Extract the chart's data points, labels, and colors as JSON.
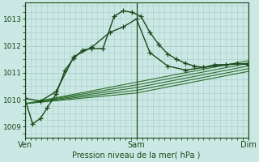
{
  "xlabel": "Pression niveau de la mer( hPa )",
  "xtick_labels": [
    "Ven",
    "Sam",
    "Dim"
  ],
  "xtick_positions": [
    0,
    0.5,
    1.0
  ],
  "ylim": [
    1008.6,
    1013.6
  ],
  "yticks": [
    1009,
    1010,
    1011,
    1012,
    1013
  ],
  "background_color": "#cce8e4",
  "grid_color": "#a8cdc9",
  "dark_color": "#1a4a1a",
  "line_color": "#2d6e2d",
  "figsize": [
    3.2,
    2.0
  ],
  "dpi": 100,
  "series": [
    {
      "x": [
        0.0,
        0.035,
        0.07,
        0.1,
        0.14,
        0.18,
        0.22,
        0.26,
        0.3,
        0.35,
        0.4,
        0.44,
        0.48,
        0.52,
        0.56,
        0.6,
        0.64,
        0.68,
        0.72,
        0.76,
        0.8,
        0.85,
        0.9,
        0.95,
        1.0
      ],
      "y": [
        1010.05,
        1009.1,
        1009.3,
        1009.7,
        1010.2,
        1011.1,
        1011.55,
        1011.85,
        1011.9,
        1011.9,
        1013.1,
        1013.3,
        1013.25,
        1013.1,
        1012.5,
        1012.05,
        1011.7,
        1011.5,
        1011.35,
        1011.25,
        1011.2,
        1011.3,
        1011.3,
        1011.35,
        1011.3
      ],
      "marker": true
    },
    {
      "x": [
        0.0,
        0.07,
        0.14,
        0.22,
        0.3,
        0.38,
        0.44,
        0.5,
        0.56,
        0.64,
        0.72,
        0.8,
        0.9,
        1.0
      ],
      "y": [
        1010.05,
        1009.95,
        1010.3,
        1011.6,
        1011.95,
        1012.5,
        1012.7,
        1013.0,
        1011.75,
        1011.25,
        1011.1,
        1011.2,
        1011.3,
        1011.35
      ],
      "marker": true
    },
    {
      "x": [
        0.0,
        0.5,
        1.0
      ],
      "y": [
        1009.85,
        1010.35,
        1011.15
      ],
      "marker": false,
      "style": "-"
    },
    {
      "x": [
        0.0,
        0.5,
        1.0
      ],
      "y": [
        1009.85,
        1010.45,
        1011.25
      ],
      "marker": false,
      "style": "-"
    },
    {
      "x": [
        0.0,
        0.5,
        1.0
      ],
      "y": [
        1009.85,
        1010.55,
        1011.35
      ],
      "marker": false,
      "style": "-"
    },
    {
      "x": [
        0.0,
        0.5,
        1.0
      ],
      "y": [
        1009.85,
        1010.65,
        1011.45
      ],
      "marker": false,
      "style": "-"
    },
    {
      "x": [
        0.0,
        0.5,
        1.0
      ],
      "y": [
        1009.85,
        1010.25,
        1011.05
      ],
      "marker": false,
      "style": "-"
    }
  ]
}
